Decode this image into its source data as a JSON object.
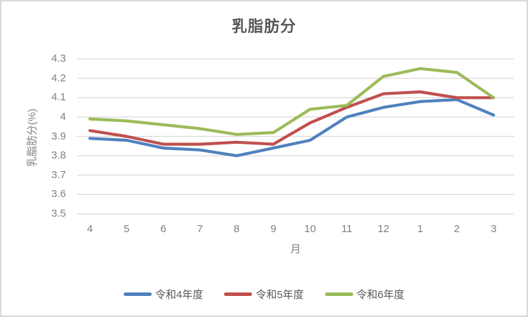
{
  "window": {
    "background": "#FFFFFF",
    "border_color": "#D9D9D9"
  },
  "colors": {
    "grid": "#D9D9D9",
    "tick_text": "#808080",
    "title_text": "#595959",
    "axis_title_text": "#808080",
    "legend_text": "#595959"
  },
  "chart_data": {
    "type": "line",
    "title": "乳脂肪分",
    "ylabel": "乳脂肪分(%)",
    "xlabel": "月",
    "categories": [
      "4",
      "5",
      "6",
      "7",
      "8",
      "9",
      "10",
      "11",
      "12",
      "1",
      "2",
      "3"
    ],
    "y_ticks": [
      "4.3",
      "4.2",
      "4.1",
      "4",
      "3.9",
      "3.8",
      "3.7",
      "3.6",
      "3.5"
    ],
    "ylim": [
      3.5,
      4.3
    ],
    "grid": true,
    "legend_position": "bottom",
    "series": [
      {
        "name": "令和4年度",
        "color": "#4F81BD",
        "values": [
          3.89,
          3.88,
          3.84,
          3.83,
          3.8,
          3.84,
          3.88,
          4.0,
          4.05,
          4.08,
          4.09,
          4.01
        ]
      },
      {
        "name": "令和5年度",
        "color": "#C0504D",
        "values": [
          3.93,
          3.9,
          3.86,
          3.86,
          3.87,
          3.86,
          3.97,
          4.05,
          4.12,
          4.13,
          4.1,
          4.1
        ]
      },
      {
        "name": "令和6年度",
        "color": "#9BBB59",
        "values": [
          3.99,
          3.98,
          3.96,
          3.94,
          3.91,
          3.92,
          4.04,
          4.06,
          4.21,
          4.25,
          4.23,
          4.1
        ]
      }
    ]
  }
}
